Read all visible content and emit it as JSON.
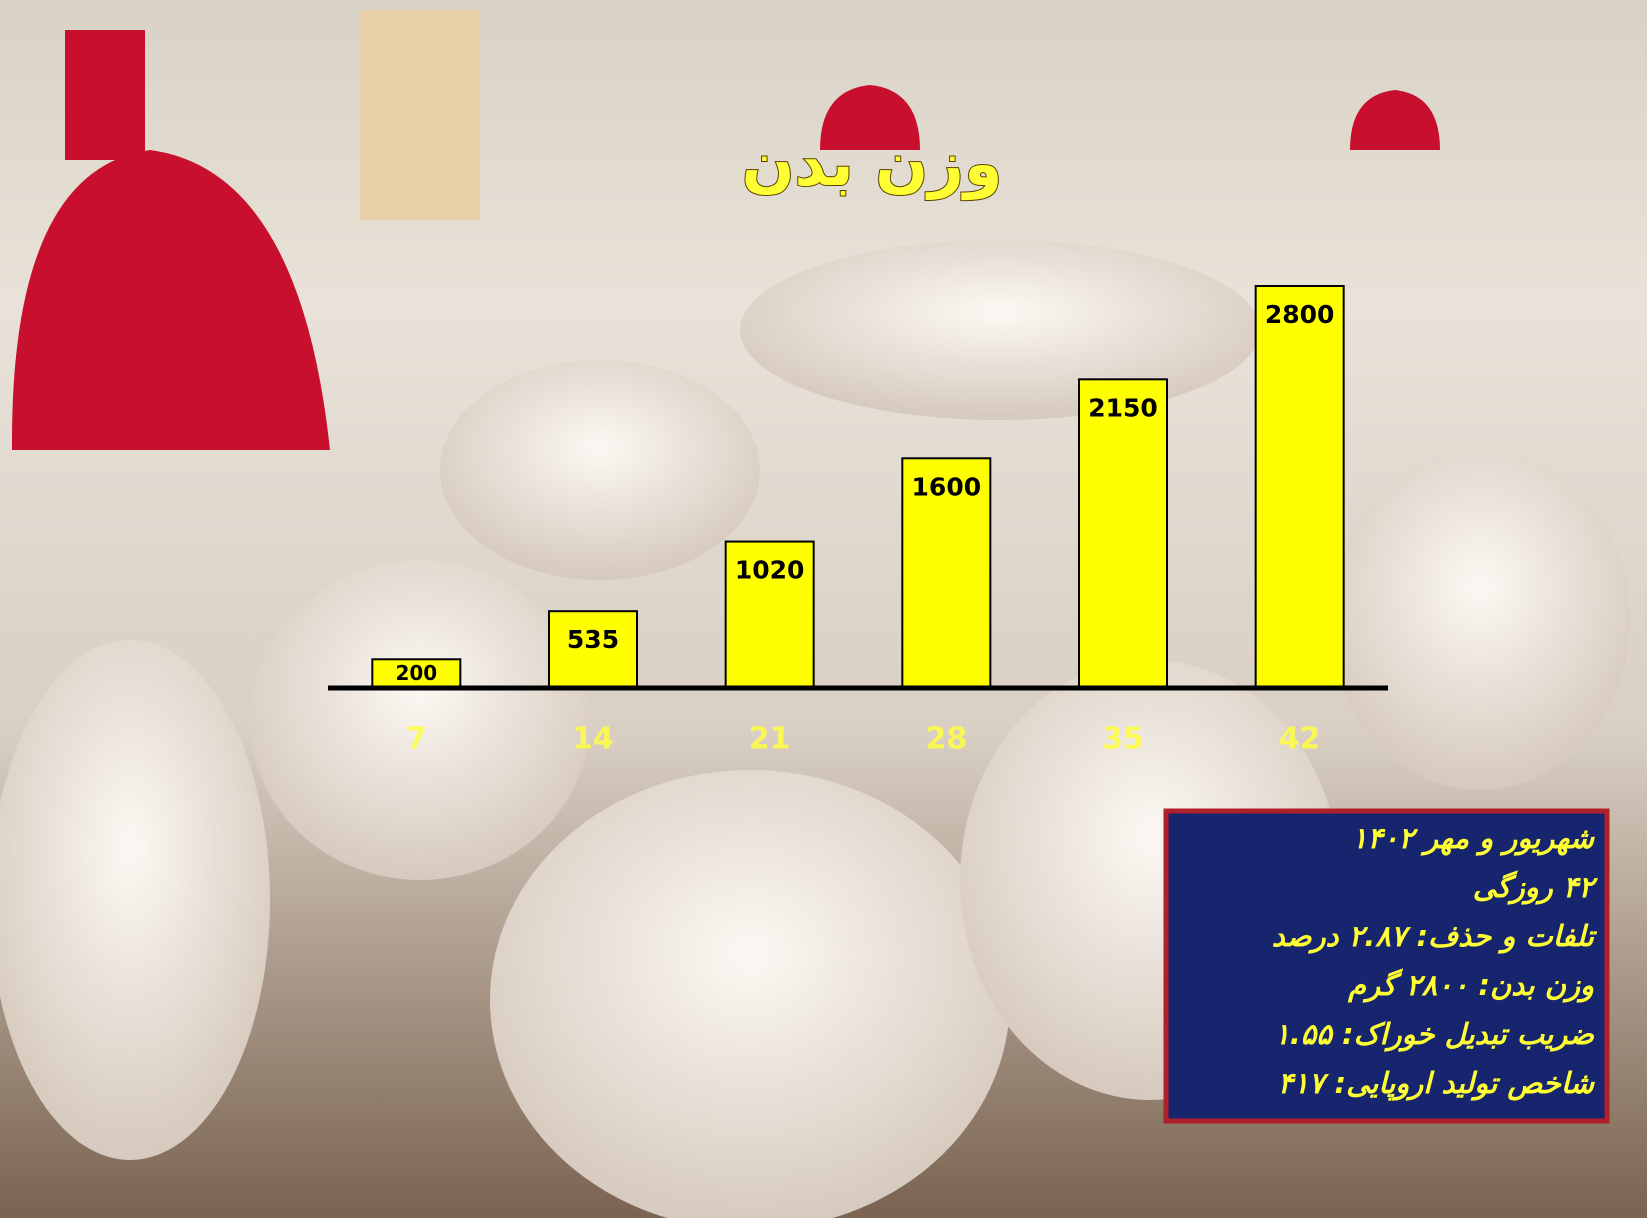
{
  "chart_data": {
    "type": "bar",
    "title": "وزن بدن",
    "categories": [
      "7",
      "14",
      "21",
      "28",
      "35",
      "42"
    ],
    "values": [
      200,
      535,
      1020,
      1600,
      2150,
      2800
    ],
    "color": "#ffff00",
    "notes": [
      "شهریور و مهر ۱۴۰۲",
      "۴۲ روزگی",
      "تلفات و حذف: ۲.۸۷ درصد",
      "وزن بدن: ۲۸۰۰ گرم",
      "ضریب تبدیل خوراک: ۱.۵۵",
      "شاخص تولید اروپایی: ۴۱۷"
    ]
  }
}
